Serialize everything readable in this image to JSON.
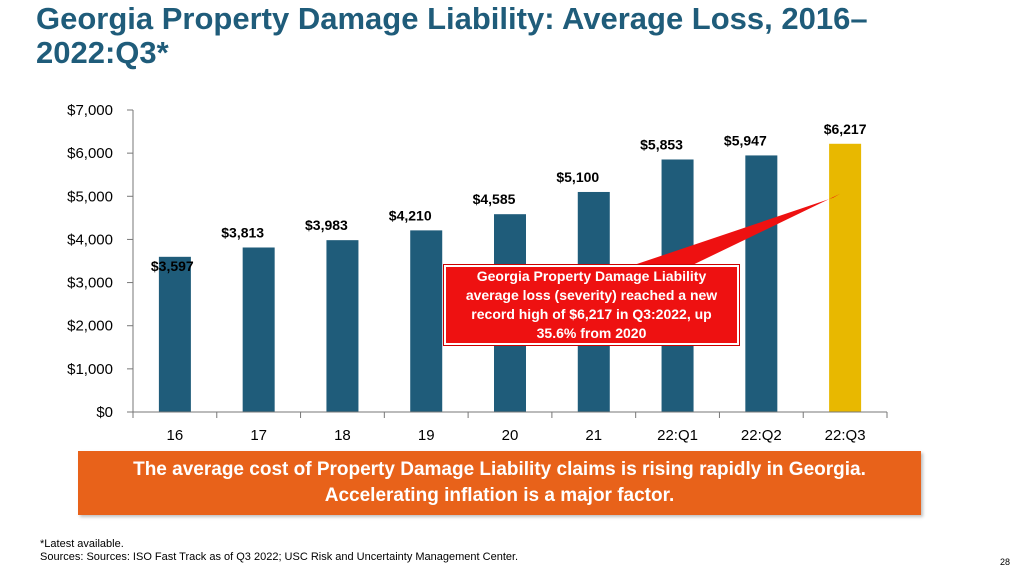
{
  "title": "Georgia Property Damage Liability: Average Loss, 2016–2022:Q3*",
  "colors": {
    "bar": "#1f5c7a",
    "highlight": "#e8b800",
    "callout": "#ee1111",
    "banner": "#e8621a"
  },
  "chart_data": {
    "type": "bar",
    "title": "Georgia Property Damage Liability: Average Loss, 2016–2022:Q3*",
    "categories": [
      "16",
      "17",
      "18",
      "19",
      "20",
      "21",
      "22:Q1",
      "22:Q2",
      "22:Q3"
    ],
    "values": [
      3597,
      3813,
      3983,
      4210,
      4585,
      5100,
      5853,
      5947,
      6217
    ],
    "value_labels": [
      "$3,597",
      "$3,813",
      "$3,983",
      "$4,210",
      "$4,585",
      "$5,100",
      "$5,853",
      "$5,947",
      "$6,217"
    ],
    "highlight_index": 8,
    "ylim": [
      0,
      7000
    ],
    "yticks": [
      0,
      1000,
      2000,
      3000,
      4000,
      5000,
      6000,
      7000
    ],
    "ytick_labels": [
      "$0",
      "$1,000",
      "$2,000",
      "$3,000",
      "$4,000",
      "$5,000",
      "$6,000",
      "$7,000"
    ],
    "xlabel": "",
    "ylabel": "",
    "grid": false
  },
  "callout": "Georgia Property Damage Liability average loss (severity) reached a new record high of $6,217 in Q3:2022, up 35.6% from 2020",
  "banner": "The average cost of Property Damage Liability claims is rising rapidly in Georgia. Accelerating inflation is a major factor.",
  "footnote": {
    "line1": "*Latest available.",
    "line2": "Sources: Sources: ISO Fast Track as of Q3 2022; USC Risk and Uncertainty Management Center."
  },
  "page_number": "28"
}
